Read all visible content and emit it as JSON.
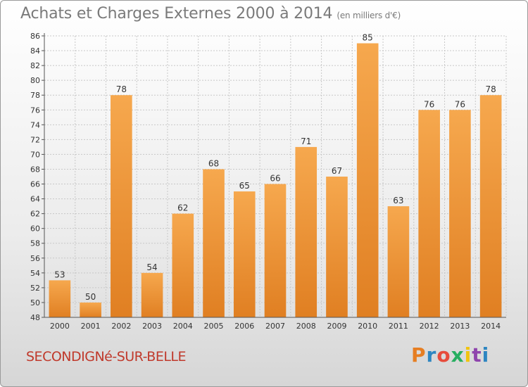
{
  "title": "Achats et Charges Externes 2000 à 2014",
  "subtitle": "(en milliers d'€)",
  "commune": "SECONDIGNé-SUR-BELLE",
  "logo": {
    "letters": [
      "P",
      "r",
      "o",
      "x",
      "i",
      "t",
      "i"
    ],
    "colors": [
      "#e67e22",
      "#2e86c1",
      "#e74c3c",
      "#27ae60",
      "#f1c40f",
      "#8e44ad",
      "#2e86c1"
    ]
  },
  "colors": {
    "bar_light": "#f6a84e",
    "bar_dark": "#e07f22",
    "grid": "#c8c8c8",
    "axis_text": "#333333",
    "title": "#7a7a7a",
    "commune": "#c0392b"
  },
  "chart_data": {
    "type": "bar",
    "categories": [
      "2000",
      "2001",
      "2002",
      "2003",
      "2004",
      "2005",
      "2006",
      "2007",
      "2008",
      "2009",
      "2010",
      "2011",
      "2012",
      "2013",
      "2014"
    ],
    "values": [
      53,
      50,
      78,
      54,
      62,
      68,
      65,
      66,
      71,
      67,
      85,
      63,
      76,
      76,
      78
    ],
    "title": "Achats et Charges Externes 2000 à 2014",
    "ylim": [
      48,
      86
    ],
    "yticks": [
      48,
      50,
      52,
      54,
      56,
      58,
      60,
      62,
      64,
      66,
      68,
      70,
      72,
      74,
      76,
      78,
      80,
      82,
      84,
      86
    ],
    "grid": true,
    "data_labels": true
  }
}
